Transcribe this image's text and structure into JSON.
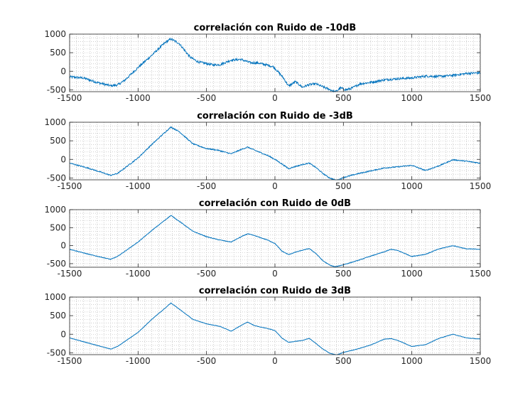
{
  "figure": {
    "background": "#ffffff",
    "line_color": "#0072bd",
    "grid_color": "#b0b0b0"
  },
  "chart_data": [
    {
      "type": "line",
      "title": "correlación con Ruido de -10dB",
      "xlim": [
        -1500,
        1500
      ],
      "ylim": [
        -550,
        1000
      ],
      "xticks": [
        -1500,
        -1000,
        -500,
        0,
        500,
        1000,
        1500
      ],
      "yticks": [
        -500,
        0,
        500,
        1000
      ],
      "grid": "minor-dotted",
      "noise": 30,
      "series": [
        {
          "x": [
            -1500,
            -1400,
            -1300,
            -1200,
            -1150,
            -1100,
            -1000,
            -900,
            -800,
            -760,
            -700,
            -620,
            -560,
            -450,
            -400,
            -320,
            -250,
            -180,
            -120,
            -60,
            -10,
            60,
            100,
            150,
            200,
            250,
            300,
            350,
            400,
            440,
            480,
            520,
            560,
            620,
            700,
            800,
            900,
            1000,
            1100,
            1200,
            1300,
            1400,
            1500
          ],
          "y": [
            -150,
            -180,
            -300,
            -390,
            -370,
            -250,
            100,
            430,
            780,
            870,
            750,
            380,
            250,
            170,
            180,
            300,
            320,
            230,
            220,
            170,
            120,
            -170,
            -400,
            -280,
            -430,
            -360,
            -340,
            -420,
            -490,
            -560,
            -450,
            -500,
            -460,
            -340,
            -300,
            -230,
            -200,
            -180,
            -130,
            -140,
            -110,
            -60,
            -40
          ]
        }
      ]
    },
    {
      "type": "line",
      "title": "correlación con Ruido de -3dB",
      "xlim": [
        -1500,
        1500
      ],
      "ylim": [
        -550,
        1000
      ],
      "xticks": [
        -1500,
        -1000,
        -500,
        0,
        500,
        1000,
        1500
      ],
      "yticks": [
        -500,
        0,
        500,
        1000
      ],
      "grid": "minor-dotted",
      "noise": 14,
      "series": [
        {
          "x": [
            -1500,
            -1350,
            -1200,
            -1150,
            -1000,
            -900,
            -800,
            -760,
            -700,
            -600,
            -500,
            -420,
            -320,
            -250,
            -200,
            -150,
            -50,
            0,
            50,
            100,
            150,
            200,
            250,
            300,
            350,
            400,
            450,
            500,
            600,
            700,
            800,
            900,
            1000,
            1100,
            1200,
            1300,
            1400,
            1500
          ],
          "y": [
            -100,
            -250,
            -430,
            -380,
            40,
            400,
            740,
            870,
            750,
            420,
            290,
            250,
            150,
            260,
            330,
            250,
            100,
            0,
            -120,
            -250,
            -190,
            -140,
            -100,
            -220,
            -380,
            -500,
            -570,
            -490,
            -390,
            -310,
            -230,
            -200,
            -160,
            -300,
            -170,
            -10,
            -50,
            -100
          ]
        }
      ]
    },
    {
      "type": "line",
      "title": "correlación con Ruido de 0dB",
      "xlim": [
        -1500,
        1500
      ],
      "ylim": [
        -600,
        1000
      ],
      "xticks": [
        -1500,
        -1000,
        -500,
        0,
        500,
        1000,
        1500
      ],
      "yticks": [
        -500,
        0,
        500,
        1000
      ],
      "grid": "minor-dotted",
      "noise": 8,
      "series": [
        {
          "x": [
            -1500,
            -1350,
            -1200,
            -1150,
            -1000,
            -900,
            -800,
            -760,
            -700,
            -600,
            -500,
            -420,
            -320,
            -250,
            -200,
            -150,
            -50,
            0,
            50,
            100,
            150,
            200,
            250,
            300,
            350,
            400,
            440,
            500,
            600,
            700,
            800,
            850,
            900,
            1000,
            1100,
            1200,
            1300,
            1400,
            1500
          ],
          "y": [
            -100,
            -250,
            -380,
            -300,
            100,
            420,
            720,
            840,
            680,
            400,
            250,
            170,
            100,
            240,
            330,
            280,
            150,
            60,
            -150,
            -250,
            -180,
            -130,
            -80,
            -220,
            -420,
            -540,
            -590,
            -530,
            -420,
            -290,
            -170,
            -100,
            -140,
            -300,
            -240,
            -90,
            0,
            -90,
            -100
          ]
        }
      ]
    },
    {
      "type": "line",
      "title": "correlación con Ruido de 3dB",
      "xlim": [
        -1500,
        1500
      ],
      "ylim": [
        -550,
        1000
      ],
      "xticks": [
        -1500,
        -1000,
        -500,
        0,
        500,
        1000,
        1500
      ],
      "yticks": [
        -500,
        0,
        500,
        1000
      ],
      "grid": "minor-dotted",
      "noise": 5,
      "series": [
        {
          "x": [
            -1500,
            -1350,
            -1200,
            -1150,
            -1000,
            -900,
            -800,
            -760,
            -700,
            -600,
            -500,
            -400,
            -320,
            -250,
            -200,
            -150,
            -50,
            0,
            50,
            100,
            150,
            200,
            250,
            300,
            350,
            400,
            450,
            500,
            600,
            700,
            800,
            850,
            900,
            1000,
            1100,
            1200,
            1300,
            1400,
            1500
          ],
          "y": [
            -100,
            -250,
            -400,
            -330,
            50,
            400,
            710,
            840,
            680,
            400,
            280,
            210,
            80,
            230,
            330,
            230,
            150,
            100,
            -100,
            -220,
            -190,
            -170,
            -110,
            -250,
            -400,
            -510,
            -560,
            -490,
            -400,
            -290,
            -130,
            -120,
            -170,
            -330,
            -280,
            -110,
            0,
            -100,
            -130
          ]
        }
      ]
    }
  ]
}
